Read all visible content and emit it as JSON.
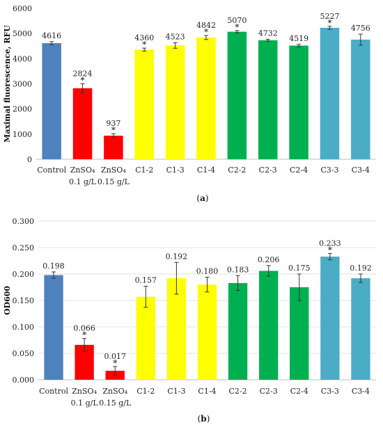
{
  "chart_data": [
    {
      "type": "bar",
      "panel_label": "a",
      "ylabel": "Maximal fluorescence, RFU",
      "xlabel": "",
      "ylim": [
        0,
        6000
      ],
      "yticks": [
        "0",
        "1000",
        "2000",
        "3000",
        "4000",
        "5000",
        "6000"
      ],
      "grid": false,
      "categories": [
        {
          "line1": "Control",
          "line2": ""
        },
        {
          "line1": "ZnSO₄",
          "line2": "0.1 g/L"
        },
        {
          "line1": "ZnSO₄",
          "line2": "0.15 g/L"
        },
        {
          "line1": "C1-2",
          "line2": ""
        },
        {
          "line1": "C1-3",
          "line2": ""
        },
        {
          "line1": "C1-4",
          "line2": ""
        },
        {
          "line1": "C2-2",
          "line2": ""
        },
        {
          "line1": "C2-3",
          "line2": ""
        },
        {
          "line1": "C2-4",
          "line2": ""
        },
        {
          "line1": "C3-3",
          "line2": ""
        },
        {
          "line1": "C3-4",
          "line2": ""
        }
      ],
      "values": [
        4616,
        2824,
        937,
        4360,
        4523,
        4842,
        5070,
        4732,
        4519,
        5227,
        4756
      ],
      "value_labels": [
        "4616",
        "2824",
        "937",
        "4360",
        "4523",
        "4842",
        "5070",
        "4732",
        "4519",
        "5227",
        "4756"
      ],
      "errors": [
        60,
        180,
        80,
        60,
        110,
        80,
        50,
        40,
        50,
        60,
        220
      ],
      "significant": [
        false,
        true,
        true,
        true,
        false,
        true,
        true,
        false,
        false,
        true,
        false
      ],
      "significance_marker": "*",
      "colors": [
        "#4f81bd",
        "#ff0000",
        "#ff0000",
        "#ffff00",
        "#ffff00",
        "#ffff00",
        "#00b050",
        "#00b050",
        "#00b050",
        "#4bacc6",
        "#4bacc6"
      ]
    },
    {
      "type": "bar",
      "panel_label": "b",
      "ylabel": "OD600",
      "xlabel": "",
      "ylim": [
        0,
        0.3
      ],
      "yticks": [
        "0.000",
        "0.050",
        "0.100",
        "0.150",
        "0.200",
        "0.250",
        "0.300"
      ],
      "grid": true,
      "categories": [
        {
          "line1": "Control",
          "line2": ""
        },
        {
          "line1": "ZnSO₄",
          "line2": "0.1 g/L"
        },
        {
          "line1": "ZnSO₄",
          "line2": "0.15 g/L"
        },
        {
          "line1": "C1-2",
          "line2": ""
        },
        {
          "line1": "C1-3",
          "line2": ""
        },
        {
          "line1": "C1-4",
          "line2": ""
        },
        {
          "line1": "C2-2",
          "line2": ""
        },
        {
          "line1": "C2-3",
          "line2": ""
        },
        {
          "line1": "C2-4",
          "line2": ""
        },
        {
          "line1": "C3-3",
          "line2": ""
        },
        {
          "line1": "C3-4",
          "line2": ""
        }
      ],
      "values": [
        0.198,
        0.066,
        0.017,
        0.157,
        0.192,
        0.18,
        0.183,
        0.206,
        0.175,
        0.233,
        0.192
      ],
      "value_labels": [
        "0.198",
        "0.066",
        "0.017",
        "0.157",
        "0.192",
        "0.180",
        "0.183",
        "0.206",
        "0.175",
        "0.233",
        "0.192"
      ],
      "errors": [
        0.006,
        0.012,
        0.008,
        0.02,
        0.03,
        0.014,
        0.014,
        0.01,
        0.025,
        0.006,
        0.008
      ],
      "significant": [
        false,
        true,
        true,
        false,
        false,
        false,
        false,
        false,
        false,
        true,
        false
      ],
      "significance_marker": "*",
      "colors": [
        "#4f81bd",
        "#ff0000",
        "#ff0000",
        "#ffff00",
        "#ffff00",
        "#ffff00",
        "#00b050",
        "#00b050",
        "#00b050",
        "#4bacc6",
        "#4bacc6"
      ]
    }
  ]
}
